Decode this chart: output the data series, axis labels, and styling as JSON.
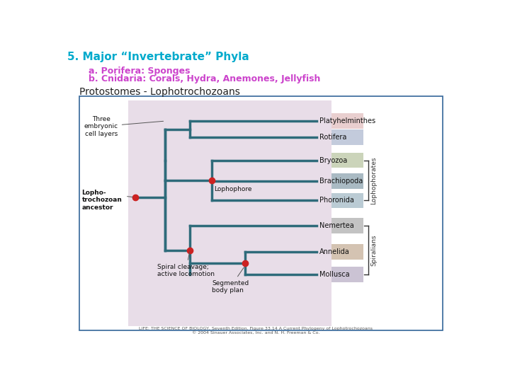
{
  "title": "5. Major “Invertebrate” Phyla",
  "title_color": "#00aacc",
  "title_fontsize": 11,
  "line1": "a. Porifera: Sponges",
  "line2": "b. Cnidaria: Corals, Hydra, Anemones, Jellyfish",
  "ab_color": "#cc44cc",
  "ab_fontsize": 9,
  "subtitle": "Protostomes - Lophotrochozoans",
  "subtitle_color": "#222222",
  "subtitle_fontsize": 10,
  "bg_color": "#ffffff",
  "diagram_bg": "#e8dde8",
  "diagram_border": "#336699",
  "tree_color": "#2e6b7a",
  "dot_color": "#cc2222",
  "phyla": [
    "Platyhelminthes",
    "Rotifera",
    "Bryozoa",
    "Brachiopoda",
    "Phoronida",
    "Nemertea",
    "Annelida",
    "Mollusca"
  ],
  "caption": "LIFE: THE SCIENCE OF BIOLOGY, Seventh Edition. Figure 33.14 A Current Phylogeny of Lophotrochozoans\n© 2004 Sinauer Associates, Inc. and N. H. Freeman & Co."
}
